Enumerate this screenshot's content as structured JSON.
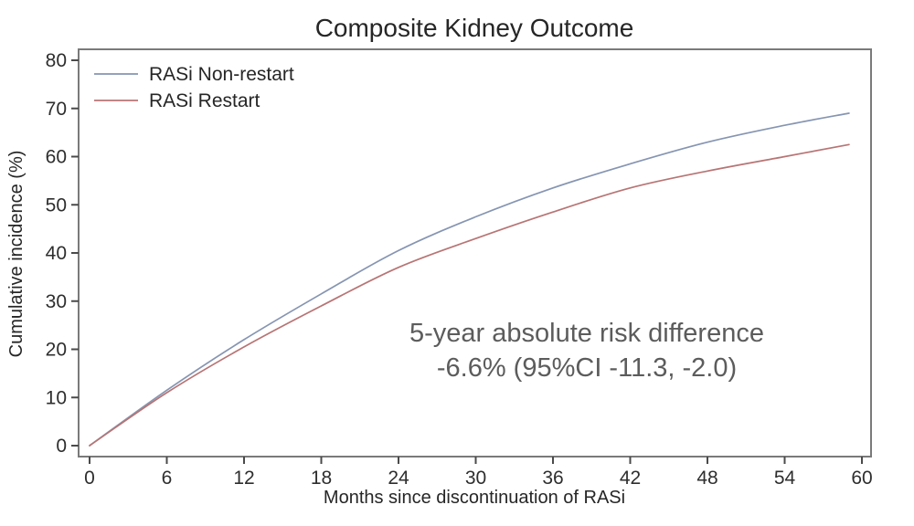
{
  "figure": {
    "title": "Composite Kidney Outcome"
  },
  "chart_data": {
    "type": "line",
    "title": "Composite Kidney Outcome",
    "xlabel": "Months since discontinuation of RASi",
    "ylabel": "Cumulative incidence (%)",
    "xlim": [
      0,
      60
    ],
    "ylim": [
      0,
      80
    ],
    "x_ticks": [
      0,
      6,
      12,
      18,
      24,
      30,
      36,
      42,
      48,
      54,
      60
    ],
    "y_ticks": [
      0,
      10,
      20,
      30,
      40,
      50,
      60,
      70,
      80
    ],
    "grid": false,
    "legend_position": "top-left-inside",
    "x": [
      0,
      6,
      12,
      18,
      24,
      30,
      36,
      42,
      48,
      54,
      59
    ],
    "series": [
      {
        "name": "RASi Non-restart",
        "color": "#8595b2",
        "values": [
          0,
          11.5,
          22,
          31.5,
          40.5,
          47.5,
          53.5,
          58.5,
          63,
          66.5,
          69
        ]
      },
      {
        "name": "RASi Restart",
        "color": "#b87474",
        "values": [
          0,
          11,
          20.5,
          29,
          37,
          43,
          48.5,
          53.5,
          57,
          60,
          62.5
        ]
      }
    ],
    "annotation": {
      "line1": "5-year absolute risk difference",
      "line2": "-6.6% (95%CI -11.3, -2.0)"
    }
  },
  "colors": {
    "background": "#ffffff",
    "plot_border": "#7a7a7a",
    "tick_mark": "#4a4a4a",
    "text": "#262626",
    "annotation_text": "#5c5c5c",
    "series_non_restart": "#8595b2",
    "series_restart": "#b87474"
  }
}
